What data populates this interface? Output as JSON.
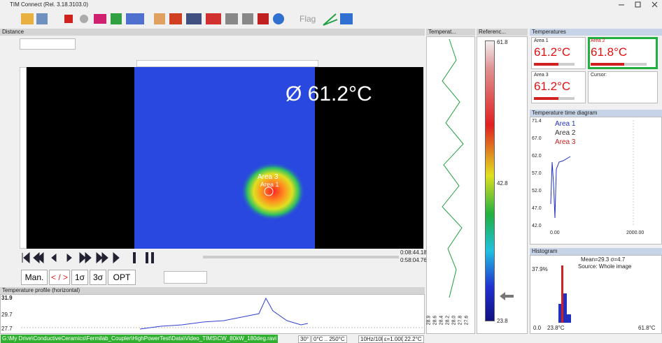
{
  "window": {
    "title": "TIM Connect (Rel. 3.18.3103.0)",
    "toolbar_flag": "Flag"
  },
  "distance": {
    "title": "Distance",
    "overlay": "Ø 61.2°C",
    "area_label": "Area 3",
    "area_sub": "Area 1",
    "time_current": "0:08:44.18",
    "time_total": "0:58:04.76",
    "buttons": [
      "Man.",
      "< / >",
      "1σ",
      "3σ",
      "OPT"
    ]
  },
  "profile": {
    "title": "Temperature profile (horizontal)",
    "yticks": [
      "31.9",
      "29.7",
      "27.7"
    ]
  },
  "strip": {
    "title": "Temperat...",
    "labels": [
      "28.9",
      "28.6",
      "28.4",
      "28.2",
      "28.0",
      "27.8",
      "27.6"
    ]
  },
  "reference": {
    "title": "Referenc...",
    "labels": [
      "61.8",
      "42.8",
      "23.8"
    ]
  },
  "temperatures": {
    "title": "Temperatures",
    "areas": [
      {
        "name": "Area 1",
        "value": "61.2°C"
      },
      {
        "name": "Area 2",
        "value": "61.8°C"
      },
      {
        "name": "Area 3",
        "value": "61.2°C"
      },
      {
        "name": "Cursor:",
        "value": ""
      }
    ]
  },
  "time_diagram": {
    "title": "Temperature time diagram",
    "legend": [
      "Area 1",
      "Area 2",
      "Area 3"
    ],
    "yticks": [
      "71.4",
      "67.0",
      "62.0",
      "57.0",
      "52.0",
      "47.0",
      "42.0"
    ],
    "xticks": [
      "0.00",
      "2000.00"
    ]
  },
  "histogram": {
    "title": "Histogram",
    "stats": "Mean=29.3 σ=4.7",
    "source": "Source:  Whole image",
    "peak": "37.9%",
    "xlabels": [
      "0.0",
      "23.8°C",
      "61.8°C"
    ]
  },
  "status": {
    "path": "G:\\My Drive\\ConductiveCeramics\\Fermilab_Coupler\\HighPowerTest\\Data\\Video_TIMS\\CW_80kW_180deg.ravi",
    "items": [
      "30°",
      "0°C .. 250°C",
      "10Hz/10Hz",
      "ε=1.000",
      "22.2°C"
    ]
  }
}
